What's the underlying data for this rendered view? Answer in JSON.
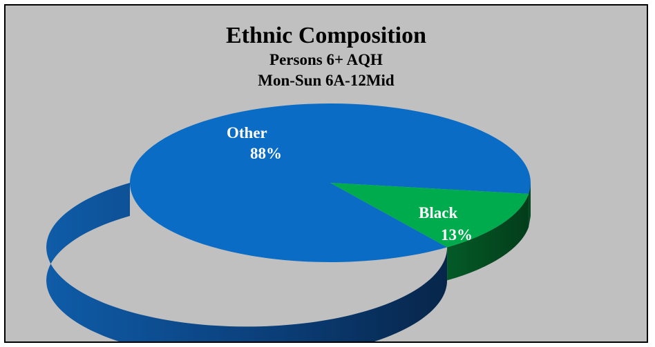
{
  "chart_data": {
    "type": "pie",
    "title": "Ethnic Composition",
    "subtitle_lines": [
      "Persons 6+ AQH",
      "Mon-Sun 6A-12Mid"
    ],
    "categories": [
      "Other",
      "Black"
    ],
    "values": [
      88,
      13
    ],
    "value_labels": [
      "88%",
      "13%"
    ],
    "colors": {
      "Other": "#0a6cc4",
      "Black": "#00ab4e"
    },
    "style": "3d-exploded-tilt",
    "legend": "none"
  },
  "colors": {
    "background": "#c0c0c0",
    "border": "#000000"
  }
}
